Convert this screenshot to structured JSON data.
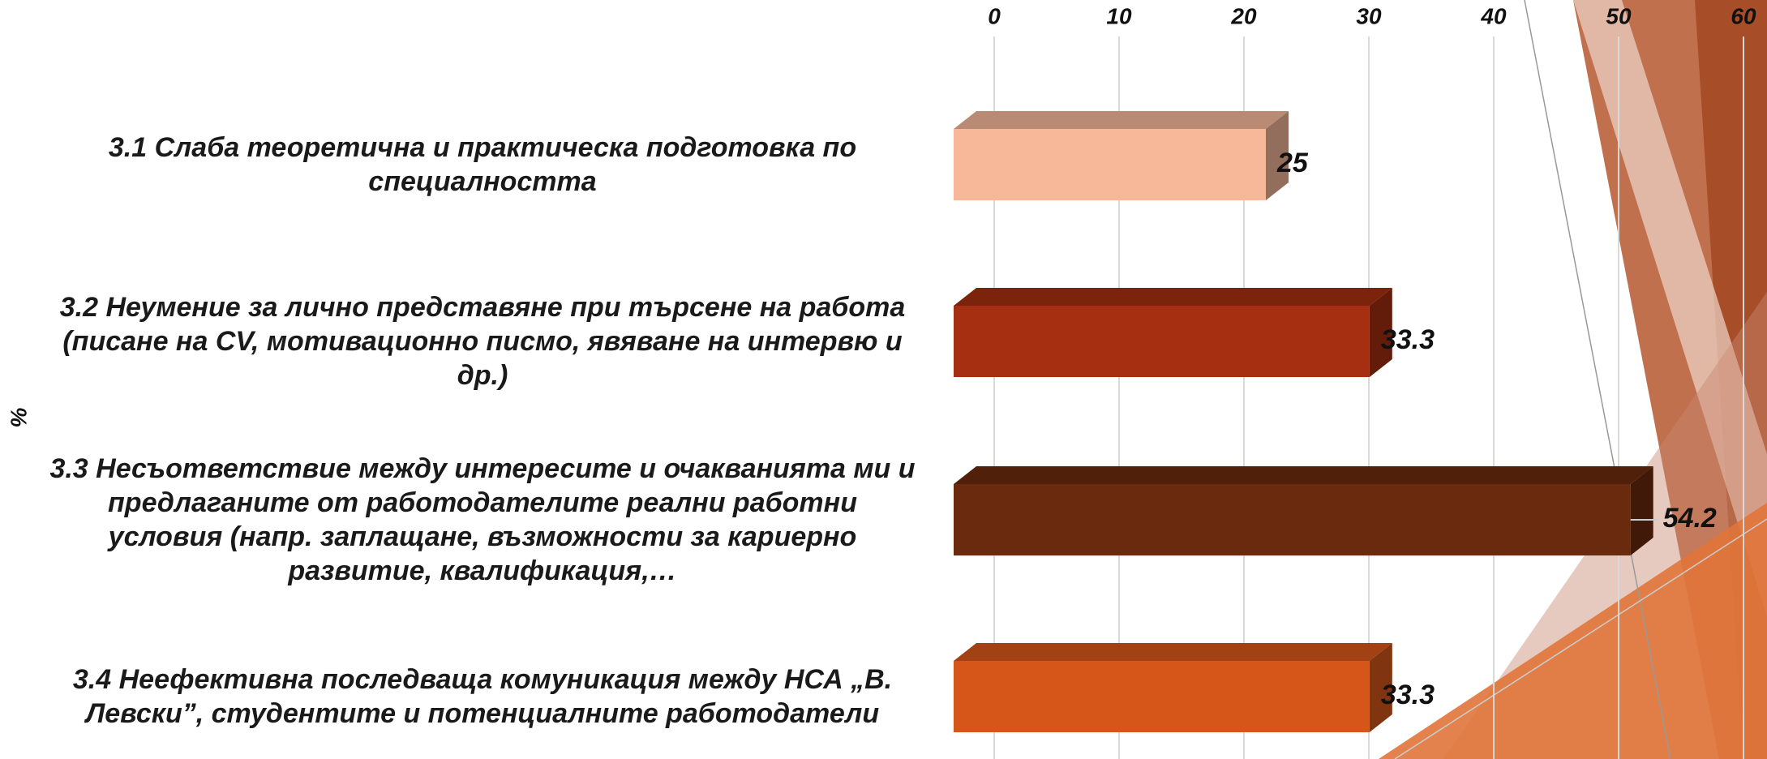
{
  "chart_data": {
    "type": "bar3d",
    "axis_label": "%",
    "categories": [
      "3.1 Слаба теоретична и практическа подготовка по специалността",
      "3.2 Неумение за лично представяне при търсене на работа (писане на CV, мотивационно писмо, явяване на интервю и др.)",
      "3.3 Несъответствие между интересите и очакванията ми и предлаганите от работодателите реални работни условия (напр. заплащане, възможности за кариерно развитие, квалификация,…",
      "3.4 Неефективна последваща комуникация между НСА „В. Левски”, студентите  и потенциалните работодатели"
    ],
    "values": [
      25,
      33.3,
      54.2,
      33.3
    ],
    "colors": [
      "#f7b89a",
      "#a52f10",
      "#6a2a0d",
      "#d6561a"
    ],
    "xlim": [
      0,
      60
    ],
    "xticks": [
      0,
      10,
      20,
      30,
      40,
      50,
      60
    ],
    "grid": true
  }
}
